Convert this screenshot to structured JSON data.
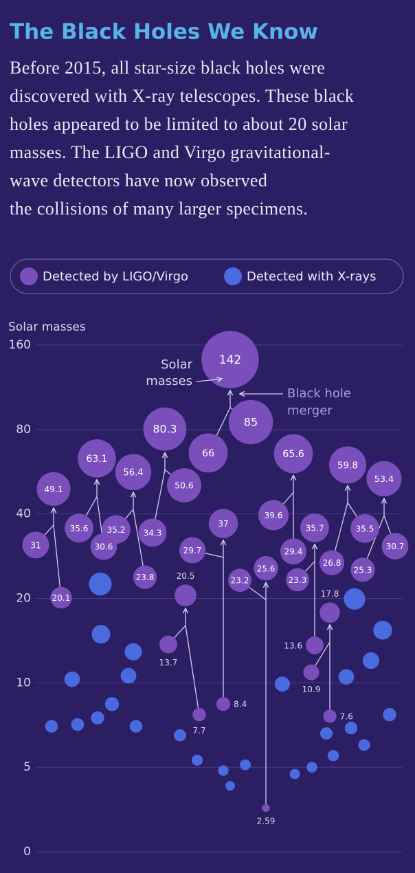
{
  "chart_data": {
    "type": "bubble",
    "title": "The Black Holes We Know",
    "subtitle": [
      "Before 2015, all star-size black holes were",
      "discovered with X-ray telescopes. These black",
      "holes appeared to be limited to about 20 solar",
      "masses. The LIGO and Virgo gravitational-",
      "wave detectors have now observed",
      "the collisions of many larger specimens."
    ],
    "ylabel": "Solar masses",
    "yscale": "symlog",
    "linthresh": 5,
    "ylim": [
      0,
      160
    ],
    "yticks": [
      0,
      5,
      10,
      20,
      40,
      80,
      160
    ],
    "grid": true,
    "annotations": [
      [
        "Solar",
        "masses"
      ],
      [
        "Black hole",
        "merger"
      ]
    ],
    "series": [
      {
        "name": "Detected by LIGO/Virgo",
        "color": "#7a4fbb",
        "values": [
          31,
          49.1,
          20.1,
          35.6,
          63.1,
          30.6,
          35.2,
          56.4,
          23.8,
          34.3,
          80.3,
          50.6,
          29.7,
          66,
          142,
          85,
          37,
          20.5,
          13.7,
          7.7,
          8.4,
          23.2,
          25.6,
          2.59,
          39.6,
          65.6,
          29.4,
          35.7,
          23.3,
          13.6,
          10.9,
          17.8,
          7.6,
          26.8,
          59.8,
          35.5,
          25.3,
          53.4,
          30.7
        ]
      },
      {
        "name": "Detected with X-rays",
        "color": "#4a6ae0",
        "values": [
          7.0,
          7.1,
          7.5,
          8.4,
          7.0,
          10.3,
          14.9,
          10.6,
          12.9,
          22.5,
          6.5,
          5.3,
          4.8,
          3.9,
          5.1,
          9.9,
          4.6,
          5.0,
          6.6,
          5.5,
          10.5,
          6.9,
          6.0,
          12.0,
          15.4,
          19.9,
          7.7
        ]
      }
    ]
  }
}
